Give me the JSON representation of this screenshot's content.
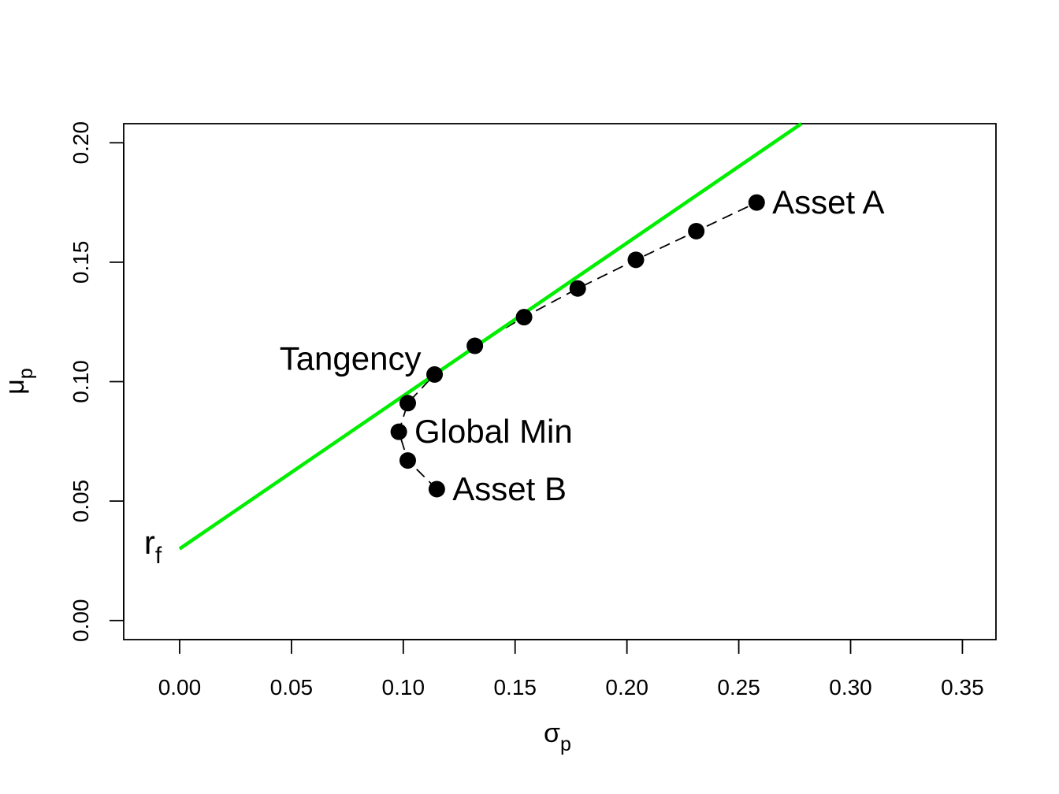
{
  "chart_data": {
    "type": "scatter",
    "title": "",
    "xlabel": {
      "main": "σ",
      "sub": "p"
    },
    "ylabel": {
      "main": "μ",
      "sub": "p"
    },
    "xlim": [
      -0.025,
      0.365
    ],
    "ylim": [
      -0.008,
      0.208
    ],
    "xticks": [
      0.0,
      0.05,
      0.1,
      0.15,
      0.2,
      0.25,
      0.3,
      0.35
    ],
    "xtick_labels": [
      "0.00",
      "0.05",
      "0.10",
      "0.15",
      "0.20",
      "0.25",
      "0.30",
      "0.35"
    ],
    "yticks": [
      0.0,
      0.05,
      0.1,
      0.15,
      0.2
    ],
    "ytick_labels": [
      "0.00",
      "0.05",
      "0.10",
      "0.15",
      "0.20"
    ],
    "grid": false,
    "frontier": {
      "line_style": "dashed",
      "color": "#000000",
      "points": [
        {
          "x": 0.115,
          "y": 0.055
        },
        {
          "x": 0.102,
          "y": 0.067
        },
        {
          "x": 0.098,
          "y": 0.079
        },
        {
          "x": 0.102,
          "y": 0.091
        },
        {
          "x": 0.114,
          "y": 0.103
        },
        {
          "x": 0.132,
          "y": 0.115
        },
        {
          "x": 0.154,
          "y": 0.127
        },
        {
          "x": 0.178,
          "y": 0.139
        },
        {
          "x": 0.204,
          "y": 0.151
        },
        {
          "x": 0.231,
          "y": 0.163
        },
        {
          "x": 0.258,
          "y": 0.175
        }
      ]
    },
    "tangency_line": {
      "color": "#00ee00",
      "x": [
        0.0,
        0.278
      ],
      "y": [
        0.03,
        0.208
      ]
    },
    "annotations": [
      {
        "text": "Asset A",
        "x": 0.265,
        "y": 0.175,
        "anchor": "start"
      },
      {
        "text": "Asset B",
        "x": 0.122,
        "y": 0.055,
        "anchor": "start"
      },
      {
        "text": "Global Min",
        "x": 0.105,
        "y": 0.079,
        "anchor": "start"
      },
      {
        "text": "Tangency",
        "x": 0.108,
        "y": 0.1095,
        "anchor": "end"
      }
    ],
    "rf_label": {
      "main": "r",
      "sub": "f",
      "x": -0.008,
      "y": 0.03
    }
  }
}
